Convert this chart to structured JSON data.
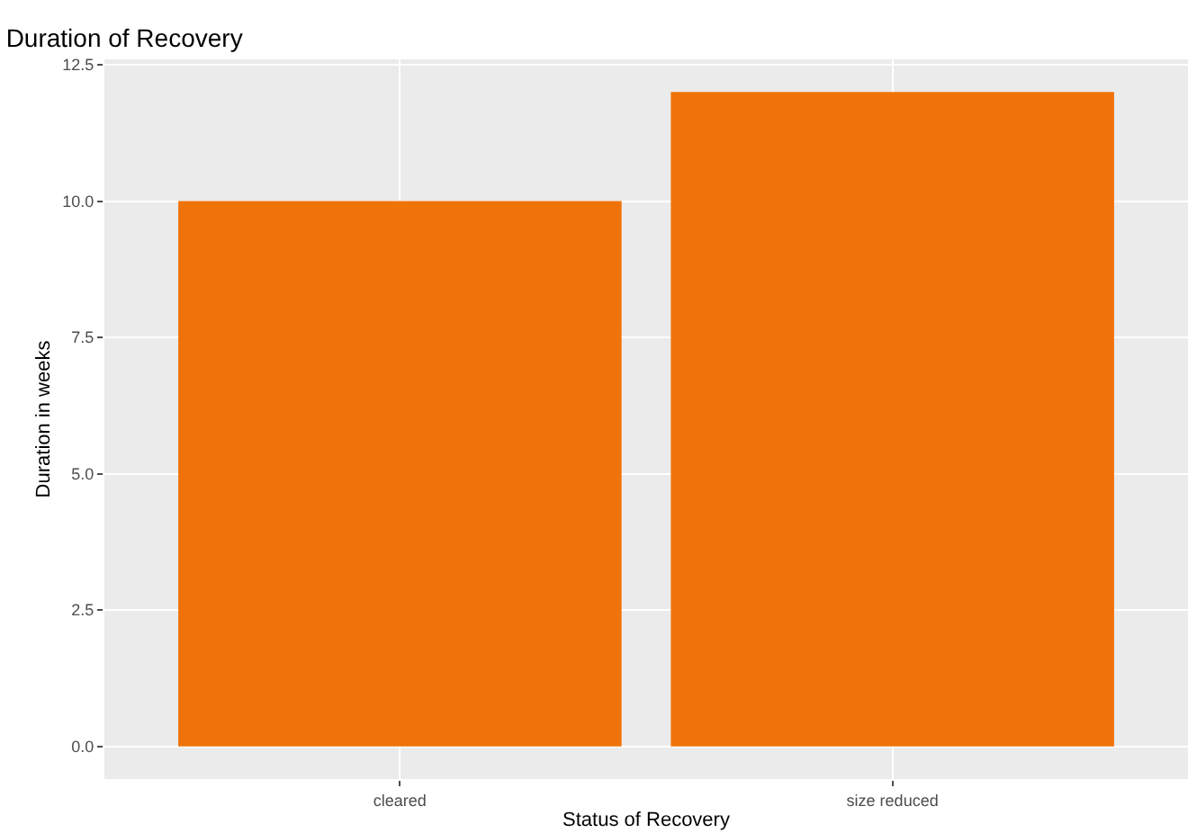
{
  "chart_data": {
    "type": "bar",
    "title": "Duration of Recovery",
    "xlabel": "Status of Recovery",
    "ylabel": "Duration in weeks",
    "categories": [
      "cleared",
      "size reduced"
    ],
    "series": [
      {
        "color": "#f07309",
        "values": [
          10,
          12
        ]
      }
    ],
    "ylim": [
      -0.6,
      12.6
    ],
    "yticks": [
      {
        "value": 0,
        "label": "0.0"
      },
      {
        "value": 2.5,
        "label": "2.5"
      },
      {
        "value": 5,
        "label": "5.0"
      },
      {
        "value": 7.5,
        "label": "7.5"
      },
      {
        "value": 10,
        "label": "10.0"
      },
      {
        "value": 12.5,
        "label": "12.5"
      }
    ],
    "grid": true
  }
}
